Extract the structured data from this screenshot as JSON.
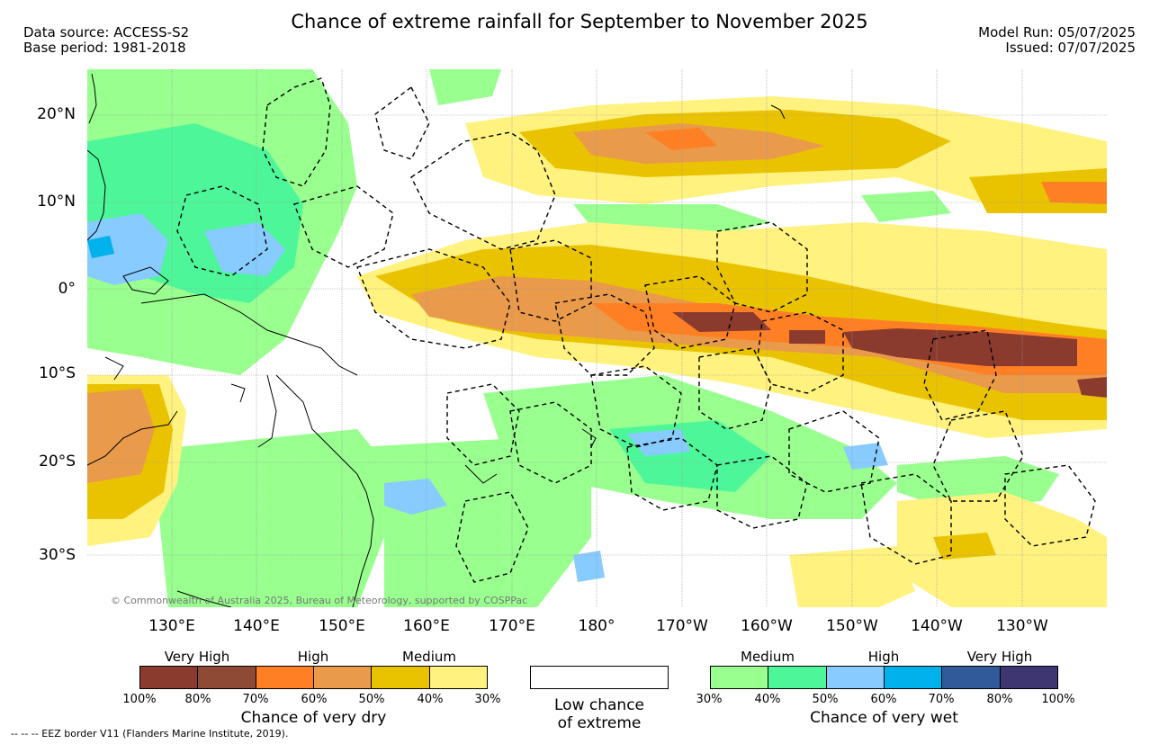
{
  "header": {
    "title": "Chance of extreme rainfall for September to November 2025",
    "data_source": "Data source: ACCESS-S2",
    "base_period": "Base period: 1981-2018",
    "model_run": "Model Run: 05/07/2025",
    "issued": "Issued: 07/07/2025"
  },
  "map": {
    "copyright": "© Commonwealth of Australia 2025, Bureau of Meteorology, supported by COSPPac",
    "lat_labels": [
      "20°N",
      "10°N",
      "0°",
      "10°S",
      "20°S",
      "30°S"
    ],
    "lon_labels": [
      "130°E",
      "140°E",
      "150°E",
      "160°E",
      "170°E",
      "180°",
      "170°W",
      "160°W",
      "150°W",
      "140°W",
      "130°W"
    ]
  },
  "legend": {
    "dry": {
      "levels": [
        "Very High",
        "High",
        "Medium"
      ],
      "ticks": [
        "100%",
        "80%",
        "70%",
        "60%",
        "50%",
        "40%",
        "30%"
      ],
      "colors": [
        "#8B3A2E",
        "#8E4A35",
        "#FF8024",
        "#E99A4A",
        "#EAC300",
        "#FFF27F"
      ],
      "caption": "Chance of very dry"
    },
    "low": {
      "caption_line1": "Low chance",
      "caption_line2": "of extreme",
      "color": "#ffffff"
    },
    "wet": {
      "levels": [
        "Medium",
        "High",
        "Very High"
      ],
      "ticks": [
        "30%",
        "40%",
        "50%",
        "60%",
        "70%",
        "80%",
        "100%"
      ],
      "colors": [
        "#99FF8F",
        "#4DF799",
        "#87CBFF",
        "#00B1EB",
        "#315A9A",
        "#3D3670"
      ],
      "caption": "Chance of very wet"
    }
  },
  "footer": {
    "eez_note": "--  --  -- EEZ border V11 (Flanders Marine Institute, 2019)."
  }
}
